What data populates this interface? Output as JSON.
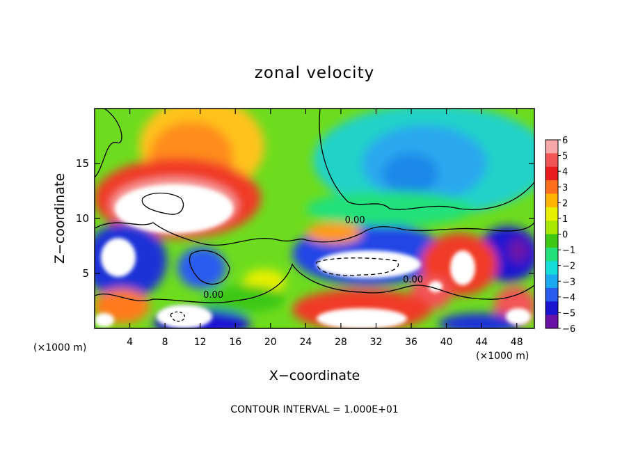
{
  "chart_data": {
    "type": "heatmap",
    "title": "zonal velocity",
    "xlabel": "X−coordinate",
    "ylabel": "Z−coordinate",
    "x_unit_left": "(×1000 m)",
    "x_unit_right": "(×1000 m)",
    "xlim": [
      0,
      50
    ],
    "ylim": [
      0,
      20
    ],
    "x_ticks": [
      4,
      8,
      12,
      16,
      20,
      24,
      28,
      32,
      36,
      40,
      44,
      48
    ],
    "y_ticks": [
      5,
      10,
      15
    ],
    "colorbar": {
      "min": -6,
      "max": 6,
      "ticks": [
        6,
        5,
        4,
        3,
        2,
        1,
        0,
        -1,
        -2,
        -3,
        -4,
        -5,
        -6
      ],
      "tick_labels": [
        "6",
        "5",
        "4",
        "3",
        "2",
        "1",
        "0",
        "−1",
        "−2",
        "−3",
        "−4",
        "−5",
        "−6"
      ],
      "colors": [
        "#f7a8a8",
        "#f25555",
        "#e81c1c",
        "#ff6e1a",
        "#ffb300",
        "#e8f000",
        "#a8e800",
        "#3ec814",
        "#23e07a",
        "#16dcd8",
        "#1aa8ee",
        "#2a5cf0",
        "#1a14d0",
        "#6a12a8"
      ]
    },
    "contour_labels": [
      {
        "text": "0.00",
        "x": 13.5,
        "z": 3.1
      },
      {
        "text": "0.00",
        "x": 29.6,
        "z": 9.9
      },
      {
        "text": "0.00",
        "x": 36.2,
        "z": 4.5
      }
    ],
    "footer": "CONTOUR INTERVAL = 1.000E+01"
  }
}
